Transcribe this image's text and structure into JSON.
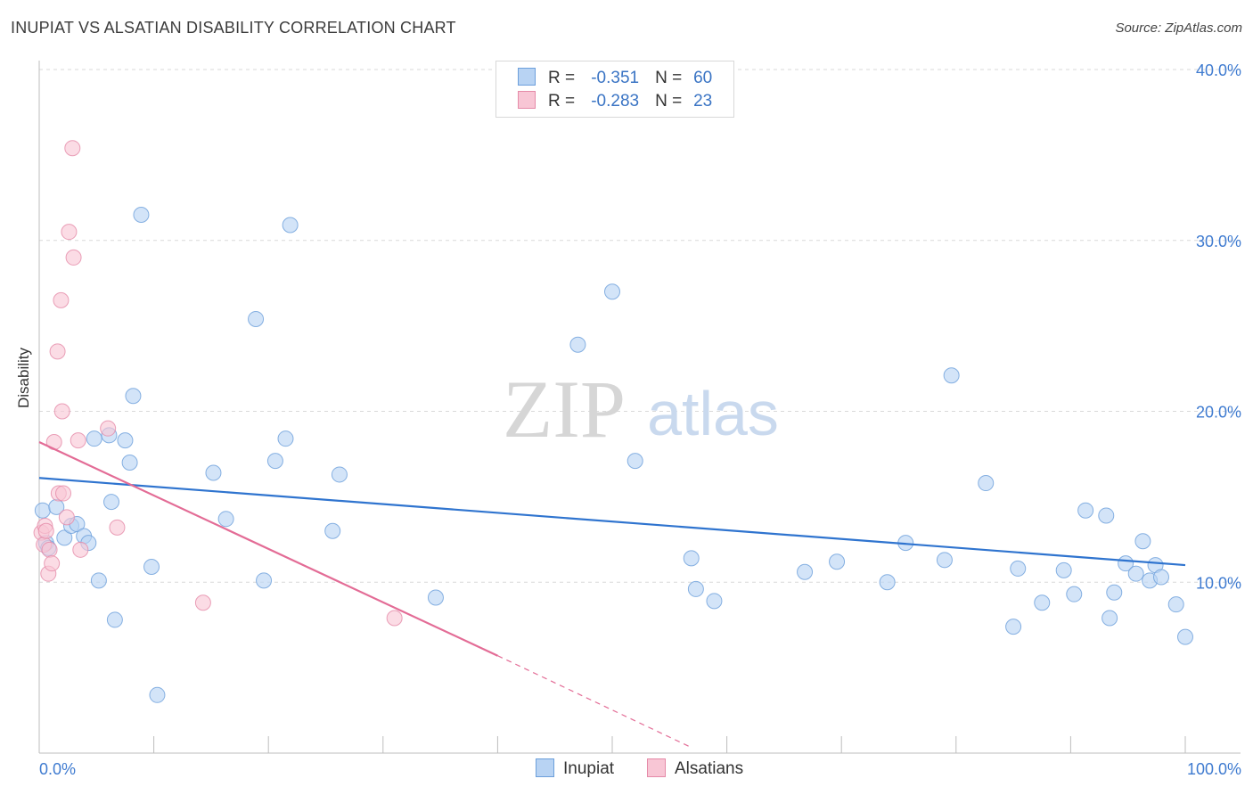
{
  "header": {
    "title": "INUPIAT VS ALSATIAN DISABILITY CORRELATION CHART",
    "source": "Source: ZipAtlas.com"
  },
  "colors": {
    "series1_fill": "#b8d3f3",
    "series1_stroke": "#6c9fdb",
    "series1_line": "#2f74cf",
    "series2_fill": "#f8c6d5",
    "series2_stroke": "#e58aa8",
    "series2_line": "#e36c96",
    "grid": "#d9d9d9",
    "axis_tick_text": "#3f7bd0",
    "watermark": "#d6d6d6"
  },
  "legend": {
    "r_label": "R =",
    "n_label": "N =",
    "rows": [
      {
        "r": "-0.351",
        "n": "60"
      },
      {
        "r": "-0.283",
        "n": "23"
      }
    ]
  },
  "watermark": {
    "zip": "ZIP",
    "atlas": "atlas"
  },
  "chart_data": {
    "type": "scatter",
    "title": "INUPIAT VS ALSATIAN DISABILITY CORRELATION CHART",
    "xlabel": "",
    "ylabel": "Disability",
    "xlim": [
      0,
      100
    ],
    "ylim": [
      0,
      40
    ],
    "x_tick_labels": [
      "0.0%",
      "100.0%"
    ],
    "y_ticks": [
      10,
      20,
      30,
      40
    ],
    "y_tick_labels": [
      "10.0%",
      "20.0%",
      "30.0%",
      "40.0%"
    ],
    "grid": true,
    "legend_position": "top-center",
    "series": [
      {
        "name": "Inupiat",
        "r": -0.351,
        "n": 60,
        "trend": {
          "x0": 0,
          "y0": 16.1,
          "x1": 100,
          "y1": 11.0
        },
        "points": [
          [
            0.3,
            14.2
          ],
          [
            0.6,
            12.3
          ],
          [
            0.8,
            12.0
          ],
          [
            1.5,
            14.4
          ],
          [
            2.2,
            12.6
          ],
          [
            2.8,
            13.3
          ],
          [
            3.3,
            13.4
          ],
          [
            3.9,
            12.7
          ],
          [
            4.3,
            12.3
          ],
          [
            4.8,
            18.4
          ],
          [
            5.2,
            10.1
          ],
          [
            6.1,
            18.6
          ],
          [
            6.3,
            14.7
          ],
          [
            6.6,
            7.8
          ],
          [
            7.5,
            18.3
          ],
          [
            7.9,
            17.0
          ],
          [
            8.2,
            20.9
          ],
          [
            8.9,
            31.5
          ],
          [
            9.8,
            10.9
          ],
          [
            10.3,
            3.4
          ],
          [
            15.2,
            16.4
          ],
          [
            16.3,
            13.7
          ],
          [
            18.9,
            25.4
          ],
          [
            19.6,
            10.1
          ],
          [
            20.6,
            17.1
          ],
          [
            21.5,
            18.4
          ],
          [
            21.9,
            30.9
          ],
          [
            25.6,
            13.0
          ],
          [
            26.2,
            16.3
          ],
          [
            34.6,
            9.1
          ],
          [
            47.0,
            23.9
          ],
          [
            50.0,
            27.0
          ],
          [
            52.0,
            17.1
          ],
          [
            56.9,
            11.4
          ],
          [
            57.3,
            9.6
          ],
          [
            58.9,
            8.9
          ],
          [
            66.8,
            10.6
          ],
          [
            69.6,
            11.2
          ],
          [
            74.0,
            10.0
          ],
          [
            75.6,
            12.3
          ],
          [
            79.0,
            11.3
          ],
          [
            79.6,
            22.1
          ],
          [
            82.6,
            15.8
          ],
          [
            85.0,
            7.4
          ],
          [
            85.4,
            10.8
          ],
          [
            87.5,
            8.8
          ],
          [
            89.4,
            10.7
          ],
          [
            90.3,
            9.3
          ],
          [
            91.3,
            14.2
          ],
          [
            93.1,
            13.9
          ],
          [
            93.4,
            7.9
          ],
          [
            93.8,
            9.4
          ],
          [
            94.8,
            11.1
          ],
          [
            95.7,
            10.5
          ],
          [
            96.3,
            12.4
          ],
          [
            96.9,
            10.1
          ],
          [
            97.4,
            11.0
          ],
          [
            97.9,
            10.3
          ],
          [
            99.2,
            8.7
          ],
          [
            100.0,
            6.8
          ]
        ]
      },
      {
        "name": "Alsatians",
        "r": -0.283,
        "n": 23,
        "trend": {
          "x0": 0,
          "y0": 18.2,
          "x1": 40,
          "y1": 5.7
        },
        "trend_dashed": {
          "x0": 40,
          "y0": 5.7,
          "x1": 57,
          "y1": 0.3
        },
        "points": [
          [
            0.2,
            12.9
          ],
          [
            0.4,
            12.2
          ],
          [
            0.5,
            13.3
          ],
          [
            0.6,
            13.0
          ],
          [
            0.8,
            10.5
          ],
          [
            0.9,
            11.9
          ],
          [
            1.1,
            11.1
          ],
          [
            1.3,
            18.2
          ],
          [
            1.6,
            23.5
          ],
          [
            1.7,
            15.2
          ],
          [
            1.9,
            26.5
          ],
          [
            2.0,
            20.0
          ],
          [
            2.1,
            15.2
          ],
          [
            2.4,
            13.8
          ],
          [
            2.6,
            30.5
          ],
          [
            2.9,
            35.4
          ],
          [
            3.0,
            29.0
          ],
          [
            3.4,
            18.3
          ],
          [
            3.6,
            11.9
          ],
          [
            6.0,
            19.0
          ],
          [
            6.8,
            13.2
          ],
          [
            14.3,
            8.8
          ],
          [
            31.0,
            7.9
          ]
        ]
      }
    ]
  }
}
